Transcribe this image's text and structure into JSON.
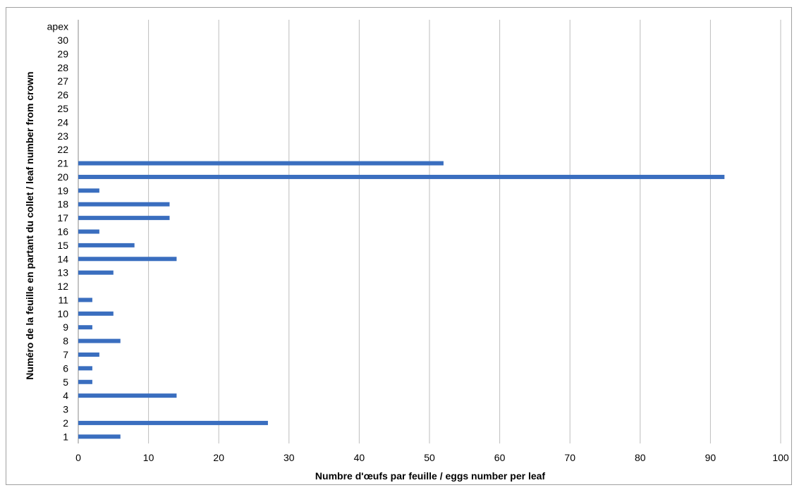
{
  "chart_data": {
    "type": "bar",
    "orientation": "horizontal",
    "title": "",
    "xlabel": "Numbre d'œufs par feuille  / eggs number per leaf",
    "ylabel": "Numéro de la feuille en partant du collet / leaf number from crown",
    "xlim": [
      0,
      100
    ],
    "xticks": [
      0,
      10,
      20,
      30,
      40,
      50,
      60,
      70,
      80,
      90,
      100
    ],
    "grid": "vertical",
    "legend": "none",
    "bar_color": "#3a6ebf",
    "categories": [
      "1",
      "2",
      "3",
      "4",
      "5",
      "6",
      "7",
      "8",
      "9",
      "10",
      "11",
      "12",
      "13",
      "14",
      "15",
      "16",
      "17",
      "18",
      "19",
      "20",
      "21",
      "22",
      "23",
      "24",
      "25",
      "26",
      "27",
      "28",
      "29",
      "30",
      "apex"
    ],
    "values": [
      6,
      27,
      0,
      14,
      2,
      2,
      3,
      6,
      2,
      5,
      2,
      0,
      5,
      14,
      8,
      3,
      13,
      13,
      3,
      92,
      52,
      0,
      0,
      0,
      0,
      0,
      0,
      0,
      0,
      0,
      0
    ]
  }
}
